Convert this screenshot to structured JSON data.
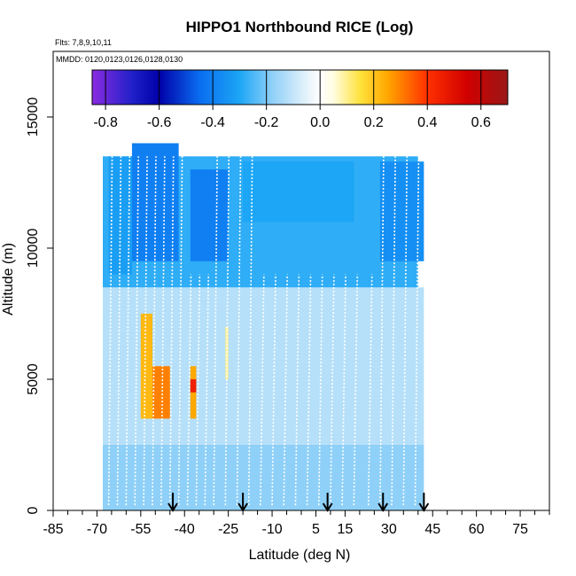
{
  "chart_data": {
    "type": "heatmap",
    "title": "HIPPO1 Northbound RICE (Log)",
    "flights_label": "Flts: 7,8,9,10,11",
    "dates_label": "MMDD: 0120,0123,0126,0128,0130",
    "xlabel": "Latitude (deg N)",
    "ylabel": "Altitude (m)",
    "xlim": [
      -85,
      85
    ],
    "ylim": [
      0,
      17500
    ],
    "x_ticks_labeled": [
      -85,
      -70,
      -55,
      -40,
      -25,
      -10,
      5,
      15,
      30,
      45,
      60,
      75
    ],
    "x_tick_labels": [
      "-85",
      "-70",
      "-55",
      "-40",
      "-25",
      "-10",
      "5",
      "15",
      "30",
      "45",
      "60",
      "75"
    ],
    "y_ticks": [
      0,
      5000,
      10000,
      15000
    ],
    "y_tick_labels": [
      "0",
      "5000",
      "10000",
      "15000"
    ],
    "colorbar": {
      "range": [
        -0.85,
        0.7
      ],
      "ticks": [
        -0.8,
        -0.6,
        -0.4,
        -0.2,
        0.0,
        0.2,
        0.4,
        0.6
      ],
      "tick_labels": [
        "-0.8",
        "-0.6",
        "-0.4",
        "-0.2",
        "0.0",
        "0.2",
        "0.4",
        "0.6"
      ],
      "stops": [
        {
          "v": -0.85,
          "c": "#8a2be2"
        },
        {
          "v": -0.7,
          "c": "#2020c8"
        },
        {
          "v": -0.6,
          "c": "#0000a8"
        },
        {
          "v": -0.45,
          "c": "#0a6cf0"
        },
        {
          "v": -0.3,
          "c": "#1ca6f5"
        },
        {
          "v": -0.18,
          "c": "#8fd0f8"
        },
        {
          "v": -0.05,
          "c": "#e4f2fb"
        },
        {
          "v": 0.0,
          "c": "#ffffff"
        },
        {
          "v": 0.05,
          "c": "#fffde0"
        },
        {
          "v": 0.15,
          "c": "#ffe23c"
        },
        {
          "v": 0.25,
          "c": "#ffa800"
        },
        {
          "v": 0.4,
          "c": "#ff3000"
        },
        {
          "v": 0.55,
          "c": "#d00000"
        },
        {
          "v": 0.7,
          "c": "#9a1818"
        }
      ]
    },
    "profile_arrows_lat": [
      -44,
      -20,
      9,
      28,
      42
    ],
    "regions": [
      {
        "name": "upper-troposphere-band",
        "lat": [
          -68,
          40
        ],
        "alt": [
          8500,
          13500
        ],
        "value": -0.28
      },
      {
        "name": "upper-band-core",
        "lat": [
          -58,
          -42
        ],
        "alt": [
          9500,
          14000
        ],
        "value": -0.4
      },
      {
        "name": "upper-band-core-2",
        "lat": [
          -38,
          -25
        ],
        "alt": [
          9500,
          13000
        ],
        "value": -0.4
      },
      {
        "name": "upper-band-south",
        "lat": [
          -66,
          -58
        ],
        "alt": [
          9000,
          13500
        ],
        "value": -0.32
      },
      {
        "name": "upper-band-mid",
        "lat": [
          -20,
          18
        ],
        "alt": [
          11000,
          13300
        ],
        "value": -0.3
      },
      {
        "name": "upper-band-north",
        "lat": [
          27,
          42
        ],
        "alt": [
          9500,
          13300
        ],
        "value": -0.36
      },
      {
        "name": "mid-troposphere",
        "lat": [
          -68,
          42
        ],
        "alt": [
          2500,
          8500
        ],
        "value": -0.12
      },
      {
        "name": "lower-troposphere",
        "lat": [
          -68,
          42
        ],
        "alt": [
          0,
          2500
        ],
        "value": -0.18
      },
      {
        "name": "south-midlat-high-1",
        "lat": [
          -54,
          -52
        ],
        "alt": [
          5000,
          6500
        ],
        "value": 0.55
      },
      {
        "name": "south-midlat-high-2",
        "lat": [
          -50,
          -46
        ],
        "alt": [
          3800,
          5000
        ],
        "value": 0.45
      },
      {
        "name": "south-midlat-mod-1",
        "lat": [
          -55,
          -51
        ],
        "alt": [
          3500,
          7500
        ],
        "value": 0.22
      },
      {
        "name": "south-midlat-mod-2",
        "lat": [
          -51,
          -45
        ],
        "alt": [
          3500,
          5500
        ],
        "value": 0.3
      },
      {
        "name": "south-midlat-mod-3",
        "lat": [
          -38,
          -36
        ],
        "alt": [
          3500,
          5500
        ],
        "value": 0.25
      },
      {
        "name": "south-midlat-high-3",
        "lat": [
          -38,
          -36
        ],
        "alt": [
          4500,
          5000
        ],
        "value": 0.45
      },
      {
        "name": "subtropic-weak",
        "lat": [
          -26,
          -25
        ],
        "alt": [
          5000,
          7000
        ],
        "value": 0.1
      }
    ]
  }
}
